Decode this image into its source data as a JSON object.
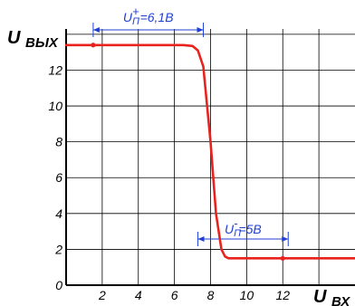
{
  "chart_data": {
    "type": "line",
    "ylabel": "U ВЫХ",
    "xlabel": "U ВХ",
    "x_tick_labels": [
      "2",
      "4",
      "6",
      "8",
      "10",
      "12"
    ],
    "y_tick_labels": [
      "0",
      "2",
      "4",
      "6",
      "8",
      "10",
      "12"
    ],
    "xlim": [
      0,
      16
    ],
    "ylim": [
      0,
      14.5
    ],
    "grid": true,
    "series": [
      {
        "color": "#e8231e",
        "x": [
          0,
          1.5,
          6.5,
          7.0,
          7.3,
          7.6,
          8.0,
          8.3,
          8.6,
          8.8,
          9.0,
          9.5,
          12.0,
          15.0,
          16.0
        ],
        "y": [
          13.4,
          13.4,
          13.4,
          13.35,
          13.1,
          12.2,
          8.0,
          4.0,
          2.0,
          1.6,
          1.5,
          1.5,
          1.5,
          1.5,
          1.5
        ]
      }
    ],
    "markers": [
      {
        "x": 1.5,
        "y": 13.4
      },
      {
        "x": 12.0,
        "y": 1.5
      }
    ],
    "annotations": [
      {
        "id": "upper",
        "text_main": "U",
        "text_sub": "П",
        "text_sup": "+",
        "text_value": "=6,1В",
        "x_from": 1.5,
        "x_to": 7.6
      },
      {
        "id": "lower",
        "text_main": "U",
        "text_sub": "П",
        "text_sup": "-",
        "text_value": "=5В",
        "x_from": 7.3,
        "x_to": 12.3
      }
    ],
    "colors": {
      "line": "#e8231e",
      "annotation": "#1f3fd6",
      "axis": "#000000",
      "grid": "#000000"
    }
  }
}
